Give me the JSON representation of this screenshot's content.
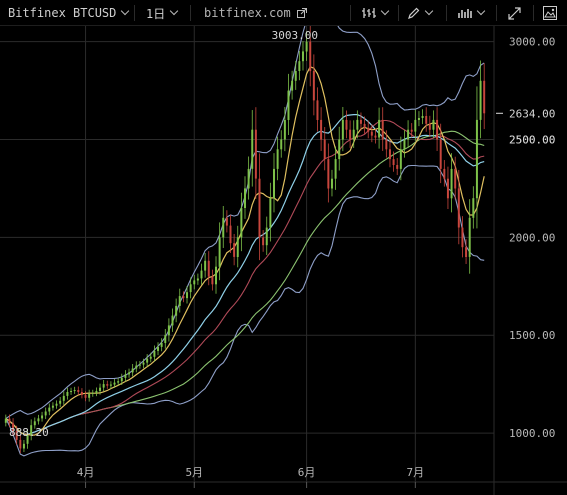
{
  "toolbar": {
    "symbol": "Bitfinex BTCUSD",
    "interval": "1日",
    "site": "bitfinex.com",
    "icons": [
      "external-link-icon",
      "bar-style-icon",
      "drawing-pencil-icon",
      "indicators-icon",
      "fullscreen-icon",
      "snapshot-icon"
    ]
  },
  "colors": {
    "background": "#000000",
    "grid": "#2b2b2b",
    "up": "#7ec24a",
    "down": "#c8463d",
    "ma_fast": "#e0c060",
    "ma_mid": "#8fd0e8",
    "ma_slow": "#b04a58",
    "ma_long": "#8bc270",
    "bollinger": "#8e9fc8"
  },
  "chart_data": {
    "type": "candlestick",
    "title": "Bitfinex BTCUSD",
    "interval": "1日",
    "x_ticks": [
      "4月",
      "5月",
      "6月",
      "7月"
    ],
    "y_ticks": [
      "1000.00",
      "1500.00",
      "2000.00",
      "2500.00",
      "3000.00"
    ],
    "ylim": [
      750,
      3080
    ],
    "price_labels": [
      {
        "text": "2634.00",
        "value": 2634
      },
      {
        "text": "2500.00",
        "value": 2500
      }
    ],
    "annotations": [
      {
        "text": "3003.00",
        "value": 3003,
        "kind": "high"
      },
      {
        "text": "888.20",
        "value": 888.2,
        "kind": "low"
      }
    ],
    "closes": [
      1074,
      1050,
      1010,
      965,
      921,
      945,
      990,
      1040,
      1060,
      1075,
      1090,
      1110,
      1130,
      1140,
      1150,
      1165,
      1190,
      1210,
      1215,
      1220,
      1210,
      1195,
      1180,
      1200,
      1205,
      1215,
      1232,
      1250,
      1242,
      1248,
      1258,
      1265,
      1282,
      1300,
      1310,
      1330,
      1345,
      1350,
      1360,
      1380,
      1390,
      1420,
      1440,
      1460,
      1500,
      1550,
      1600,
      1650,
      1700,
      1690,
      1720,
      1760,
      1780,
      1790,
      1830,
      1880,
      1800,
      1760,
      1850,
      2000,
      2100,
      2060,
      1970,
      1900,
      2000,
      2150,
      2250,
      2350,
      2550,
      2300,
      2000,
      1960,
      2050,
      2200,
      2350,
      2450,
      2500,
      2600,
      2750,
      2800,
      2850,
      2900,
      2950,
      3000,
      2850,
      2700,
      2600,
      2500,
      2400,
      2250,
      2300,
      2400,
      2500,
      2600,
      2550,
      2500,
      2550,
      2600,
      2580,
      2560,
      2540,
      2520,
      2510,
      2600,
      2500,
      2450,
      2400,
      2370,
      2350,
      2450,
      2500,
      2550,
      2540,
      2600,
      2610,
      2620,
      2580,
      2550,
      2600,
      2500,
      2350,
      2300,
      2200,
      2350,
      2250,
      2050,
      1950,
      1900,
      2100,
      2200,
      2600,
      2800,
      2634
    ]
  }
}
